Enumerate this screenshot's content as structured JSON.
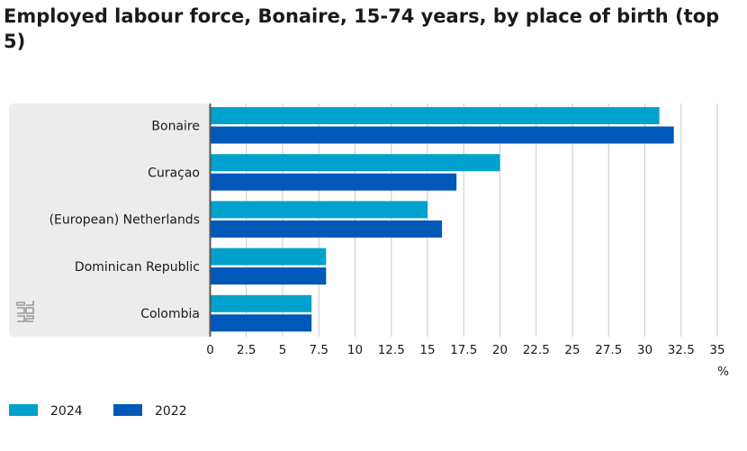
{
  "chart_data": {
    "type": "bar",
    "orientation": "horizontal",
    "title": "Employed labour force, Bonaire, 15-74 years, by place of birth (top 5)",
    "categories": [
      "Bonaire",
      "Curaçao",
      "(European) Netherlands",
      "Dominican Republic",
      "Colombia"
    ],
    "series": [
      {
        "name": "2024",
        "color": "#00a1cd",
        "values": [
          31,
          20,
          15,
          8,
          7
        ]
      },
      {
        "name": "2022",
        "color": "#0058b8",
        "values": [
          32,
          17,
          16,
          8,
          7
        ]
      }
    ],
    "xlabel": "%",
    "xlim": [
      0,
      35
    ],
    "xticks": [
      "0",
      "2.5",
      "5",
      "7.5",
      "10",
      "12.5",
      "15",
      "17.5",
      "20",
      "22.5",
      "25",
      "27.5",
      "30",
      "32.5",
      "35"
    ],
    "grid": "vertical",
    "legend_position": "bottom-left",
    "logo_icon": "cbs-logo-icon"
  }
}
